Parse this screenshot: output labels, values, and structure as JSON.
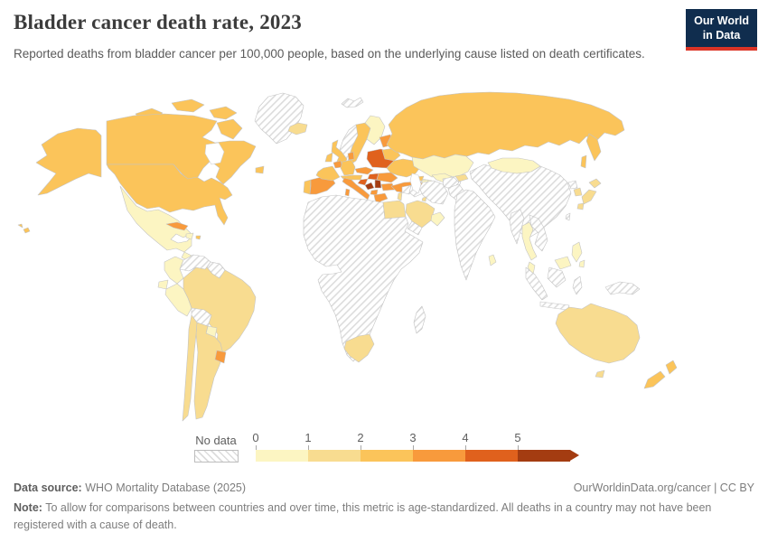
{
  "header": {
    "title": "Bladder cancer death rate, 2023",
    "subtitle": "Reported deaths from bladder cancer per 100,000 people, based on the underlying cause listed on death certificates.",
    "logo": {
      "line1": "Our World",
      "line2": "in Data",
      "bg_color": "#102d4e",
      "accent_color": "#dc3426"
    }
  },
  "legend": {
    "no_data_label": "No data",
    "tick_labels": [
      "0",
      "1",
      "2",
      "3",
      "4",
      "5"
    ],
    "bins": [
      {
        "range": "0-1",
        "color": "#fcf5c2"
      },
      {
        "range": "1-2",
        "color": "#f8dc90"
      },
      {
        "range": "2-3",
        "color": "#fbc45a"
      },
      {
        "range": "3-4",
        "color": "#f89a3c"
      },
      {
        "range": "4-5",
        "color": "#e0611d"
      },
      {
        "range": "5+",
        "color": "#a43c11"
      }
    ],
    "no_data_hatch_color": "#dcdcdc"
  },
  "footer": {
    "source_label": "Data source:",
    "source_text": " WHO Mortality Database (2025)",
    "rights": "OurWorldinData.org/cancer | CC BY",
    "note_label": "Note:",
    "note_text": " To allow for comparisons between countries and over time, this metric is age-standardized. All deaths in a country may not have been registered with a cause of death."
  },
  "chart_data": {
    "type": "choropleth",
    "title": "Bladder cancer death rate, 2023",
    "unit": "deaths per 100,000 people (age-standardized)",
    "year": 2023,
    "legend_bins": [
      "0-1",
      "1-2",
      "2-3",
      "3-4",
      "4-5",
      "5+",
      "No data"
    ],
    "countries": {
      "Canada": "2-3",
      "United States": "2-3",
      "Greenland": "No data",
      "Mexico": "0-1",
      "Central America": "0-1",
      "Cuba": "3-4",
      "Dominican Republic": "0-1",
      "Puerto Rico": "2-3",
      "Colombia": "0-1",
      "Venezuela": "No data",
      "Guyana and Suriname": "No data",
      "Ecuador": "0-1",
      "Peru": "0-1",
      "Brazil": "1-2",
      "Bolivia": "No data",
      "Paraguay": "0-1",
      "Uruguay": "3-4",
      "Argentina": "1-2",
      "Chile": "1-2",
      "Iceland": "1-2",
      "Svalbard": "No data",
      "Norway": "No data",
      "Sweden": "2-3",
      "Finland": "0-1",
      "Denmark": "3-4",
      "United Kingdom": "2-3",
      "Ireland": "2-3",
      "Portugal": "2-3",
      "Spain": "3-4",
      "France": "2-3",
      "Belgium and Netherlands": "3-4",
      "Germany": "2-3",
      "Switzerland and Austria": "2-3",
      "Czechia and Slovakia": "3-4",
      "Poland": "4-5",
      "Baltic states": "3-4",
      "Belarus": "2-3",
      "Ukraine": "2-3",
      "Hungary": "4-5",
      "Romania": "3-4",
      "Croatia": "4-5",
      "Bosnia and Herzegovina": "5+",
      "Serbia": "5+",
      "Bulgaria": "3-4",
      "Albania and North Macedonia": "3-4",
      "Greece": "3-4",
      "Italy": "3-4",
      "Russia": "2-3",
      "Kazakhstan": "0-1",
      "Turkmenistan": "0-1",
      "Uzbekistan": "0-1",
      "Kyrgyzstan": "1-2",
      "Tajikistan": "No data",
      "Mongolia": "0-1",
      "China": "No data",
      "Taiwan": "No data",
      "North Korea": "No data",
      "South Korea": "1-2",
      "Japan": "1-2",
      "Georgia": "2-3",
      "Armenia": "3-4",
      "Azerbaijan": "0-1",
      "Turkey": "3-4",
      "Syria and Jordan": "No data",
      "Iraq": "No data",
      "Iran": "No data",
      "Afghanistan": "No data",
      "Pakistan": "No data",
      "India": "No data",
      "Sri Lanka": "0-1",
      "Israel": "1-2",
      "Saudi Arabia": "1-2",
      "Kuwait": "1-2",
      "UAE and Oman": "0-1",
      "Yemen": "No data",
      "Egypt": "1-2",
      "Africa (most countries)": "No data",
      "South Africa": "1-2",
      "Madagascar": "No data",
      "Myanmar": "No data",
      "Thailand": "0-1",
      "Vietnam Laos Cambodia": "No data",
      "Malaysia": "0-1",
      "Indonesia": "No data",
      "Philippines": "0-1",
      "Sri Lanka island": "0-1",
      "Papua New Guinea": "No data",
      "Australia": "1-2",
      "New Zealand": "2-3"
    }
  }
}
